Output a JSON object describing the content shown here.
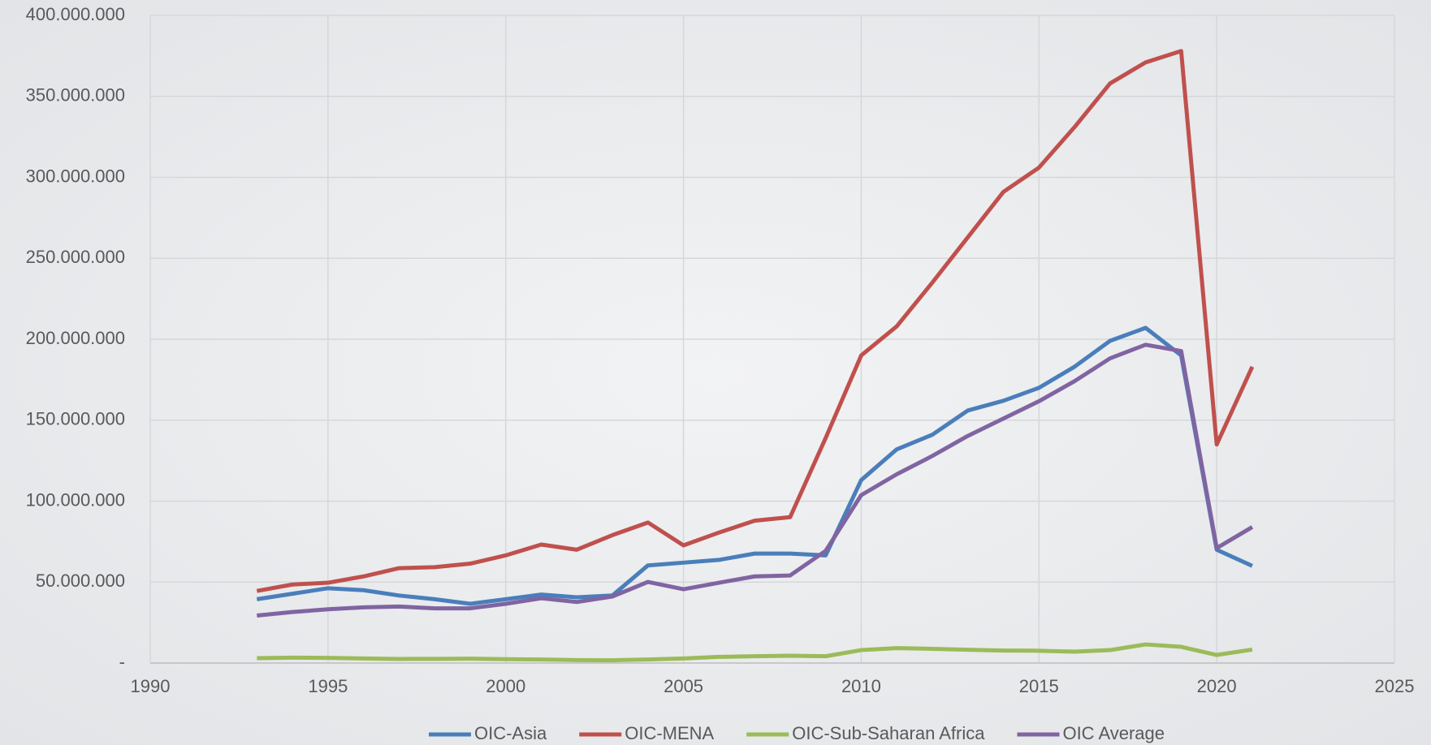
{
  "chart_data": {
    "type": "line",
    "x": [
      1993,
      1994,
      1995,
      1996,
      1997,
      1998,
      1999,
      2000,
      2001,
      2002,
      2003,
      2004,
      2005,
      2006,
      2007,
      2008,
      2009,
      2010,
      2011,
      2012,
      2013,
      2014,
      2015,
      2016,
      2017,
      2018,
      2019,
      2020,
      2021
    ],
    "series": [
      {
        "name": "OIC-Asia",
        "color": "#4a7ebb",
        "values": [
          39400000,
          42800000,
          46200000,
          45000000,
          41700000,
          39400000,
          36600000,
          39400000,
          42300000,
          40600000,
          41700000,
          60300000,
          62000000,
          63700000,
          67600000,
          67600000,
          66500000,
          113000000,
          132000000,
          141000000,
          156000000,
          162000000,
          170000000,
          183000000,
          199000000,
          207000000,
          190000000,
          70000000,
          60000000
        ]
      },
      {
        "name": "OIC-MENA",
        "color": "#c0504d",
        "values": [
          44500000,
          48500000,
          49600000,
          53500000,
          58600000,
          59200000,
          61400000,
          66500000,
          73200000,
          70000000,
          79000000,
          86800000,
          72700000,
          80600000,
          87900000,
          90100000,
          139000000,
          190000000,
          208000000,
          235000000,
          263000000,
          291000000,
          306000000,
          331000000,
          358000000,
          371000000,
          378000000,
          135000000,
          183000000
        ]
      },
      {
        "name": "OIC-Sub-Saharan Africa",
        "color": "#9bbb59",
        "values": [
          3000000,
          3300000,
          3200000,
          2800000,
          2500000,
          2600000,
          2700000,
          2400000,
          2200000,
          1800000,
          1700000,
          2200000,
          2800000,
          3800000,
          4200000,
          4500000,
          4200000,
          8000000,
          9200000,
          8800000,
          8200000,
          7700000,
          7600000,
          7000000,
          8000000,
          11500000,
          10000000,
          5000000,
          8300000
        ]
      },
      {
        "name": "OIC Average",
        "color": "#8064a2",
        "values": [
          29300000,
          31500000,
          33200000,
          34400000,
          34900000,
          33800000,
          33800000,
          36600000,
          40000000,
          37700000,
          41100000,
          50100000,
          45600000,
          49600000,
          53500000,
          54100000,
          69300000,
          103700000,
          116600000,
          127900000,
          140300000,
          151000000,
          161700000,
          174100000,
          188200000,
          196600000,
          192700000,
          71000000,
          84000000
        ]
      }
    ],
    "xlim": [
      1990,
      2025
    ],
    "xticks": [
      1990,
      1995,
      2000,
      2005,
      2010,
      2015,
      2020,
      2025
    ],
    "ylim": [
      0,
      400000000
    ],
    "yticks": [
      {
        "value": 0,
        "label": "-"
      },
      {
        "value": 50000000,
        "label": "50.000.000"
      },
      {
        "value": 100000000,
        "label": "100.000.000"
      },
      {
        "value": 150000000,
        "label": "150.000.000"
      },
      {
        "value": 200000000,
        "label": "200.000.000"
      },
      {
        "value": 250000000,
        "label": "250.000.000"
      },
      {
        "value": 300000000,
        "label": "300.000.000"
      },
      {
        "value": 350000000,
        "label": "350.000.000"
      },
      {
        "value": 400000000,
        "label": "400.000.000"
      }
    ],
    "grid": true,
    "legend": "bottom"
  }
}
